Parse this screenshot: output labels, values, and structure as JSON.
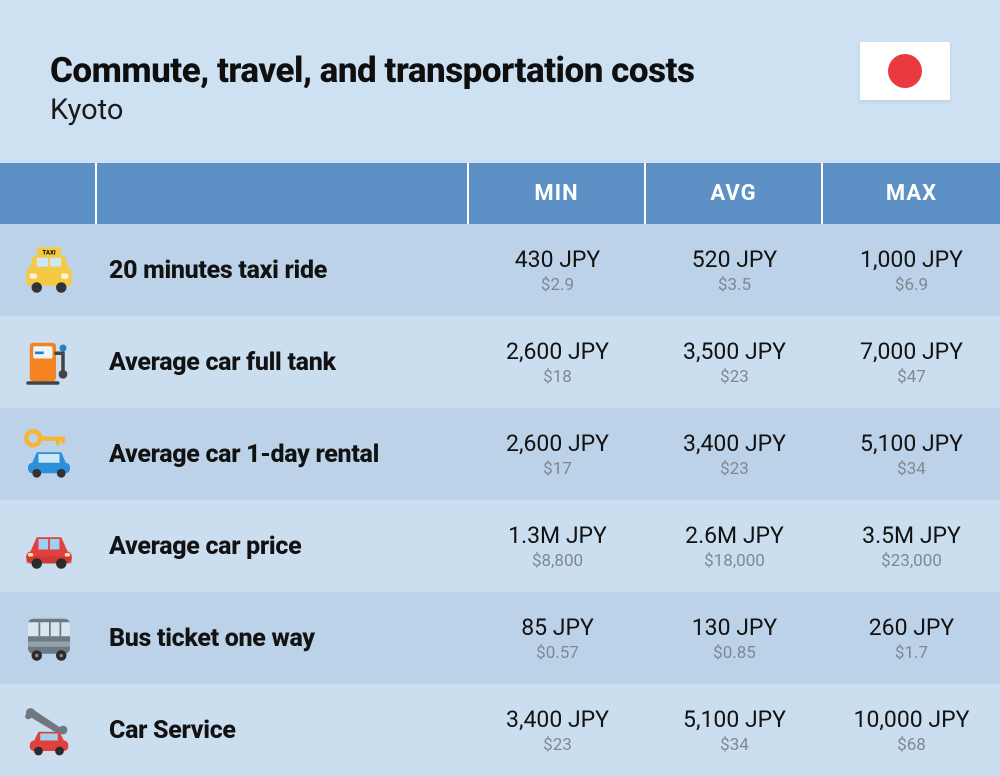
{
  "header": {
    "title": "Commute, travel, and transportation costs",
    "subtitle": "Kyoto",
    "flag_bg": "#ffffff",
    "flag_dot_color": "#e83a3f"
  },
  "colors": {
    "page_bg": "#cde1f3",
    "header_row_bg": "#5d90c4",
    "row_odd_bg": "#bcd2e8",
    "row_even_bg": "#cbdef0",
    "title_color": "#0f0f0f",
    "subtitle_color": "#1a1a1a",
    "header_text": "#ffffff",
    "label_color": "#121212",
    "main_val_color": "#121212",
    "sub_val_color": "#808891"
  },
  "columns": {
    "min": "MIN",
    "avg": "AVG",
    "max": "MAX"
  },
  "rows": [
    {
      "icon": "taxi",
      "label": "20 minutes taxi ride",
      "min_main": "430 JPY",
      "min_sub": "$2.9",
      "avg_main": "520 JPY",
      "avg_sub": "$3.5",
      "max_main": "1,000 JPY",
      "max_sub": "$6.9"
    },
    {
      "icon": "fuel",
      "label": "Average car full tank",
      "min_main": "2,600 JPY",
      "min_sub": "$18",
      "avg_main": "3,500 JPY",
      "avg_sub": "$23",
      "max_main": "7,000 JPY",
      "max_sub": "$47"
    },
    {
      "icon": "rental",
      "label": "Average car 1-day rental",
      "min_main": "2,600 JPY",
      "min_sub": "$17",
      "avg_main": "3,400 JPY",
      "avg_sub": "$23",
      "max_main": "5,100 JPY",
      "max_sub": "$34"
    },
    {
      "icon": "car",
      "label": "Average car price",
      "min_main": "1.3M JPY",
      "min_sub": "$8,800",
      "avg_main": "2.6M JPY",
      "avg_sub": "$18,000",
      "max_main": "3.5M JPY",
      "max_sub": "$23,000"
    },
    {
      "icon": "bus",
      "label": "Bus ticket one way",
      "min_main": "85 JPY",
      "min_sub": "$0.57",
      "avg_main": "130 JPY",
      "avg_sub": "$0.85",
      "max_main": "260 JPY",
      "max_sub": "$1.7"
    },
    {
      "icon": "service",
      "label": "Car Service",
      "min_main": "3,400 JPY",
      "min_sub": "$23",
      "avg_main": "5,100 JPY",
      "avg_sub": "$34",
      "max_main": "10,000 JPY",
      "max_sub": "$68"
    }
  ],
  "icon_colors": {
    "taxi_body": "#f6c945",
    "taxi_dark": "#2b2b2b",
    "taxi_wheel": "#333",
    "fuel_body": "#f58220",
    "fuel_accent": "#2b7fbf",
    "fuel_panel": "#ecf5fb",
    "rental_key": "#f6b534",
    "rental_car": "#2b90d9",
    "car_body": "#e2403d",
    "car_shade": "#b32f2d",
    "bus_body": "#6d7880",
    "bus_window": "#d8e6ef",
    "bus_accent": "#94a2ab",
    "service_wrench": "#6d7880",
    "service_car": "#e2403d"
  }
}
